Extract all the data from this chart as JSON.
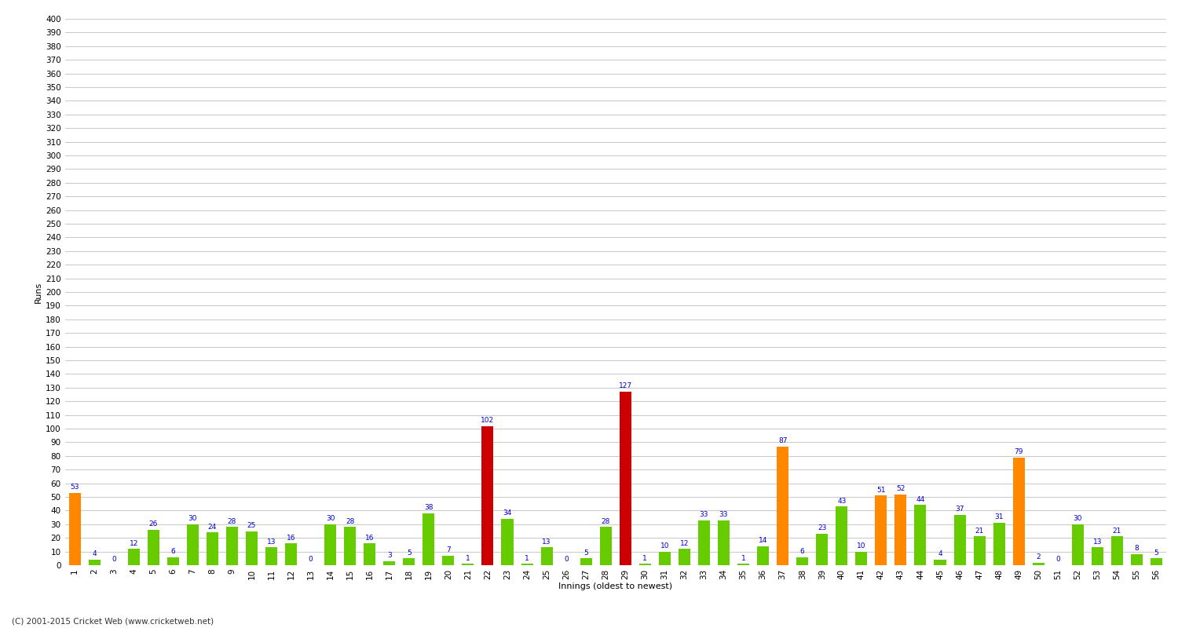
{
  "title": "",
  "xlabel": "Innings (oldest to newest)",
  "ylabel": "Runs",
  "footer": "(C) 2001-2015 Cricket Web (www.cricketweb.net)",
  "ylim": [
    0,
    400
  ],
  "ytick_step": 10,
  "innings": [
    {
      "n": 1,
      "runs": 53,
      "color": "orange"
    },
    {
      "n": 2,
      "runs": 4,
      "color": "green"
    },
    {
      "n": 3,
      "runs": 0,
      "color": "green"
    },
    {
      "n": 4,
      "runs": 12,
      "color": "green"
    },
    {
      "n": 5,
      "runs": 26,
      "color": "green"
    },
    {
      "n": 6,
      "runs": 6,
      "color": "green"
    },
    {
      "n": 7,
      "runs": 30,
      "color": "green"
    },
    {
      "n": 8,
      "runs": 24,
      "color": "green"
    },
    {
      "n": 9,
      "runs": 28,
      "color": "green"
    },
    {
      "n": 10,
      "runs": 25,
      "color": "green"
    },
    {
      "n": 11,
      "runs": 13,
      "color": "green"
    },
    {
      "n": 12,
      "runs": 16,
      "color": "green"
    },
    {
      "n": 13,
      "runs": 0,
      "color": "green"
    },
    {
      "n": 14,
      "runs": 30,
      "color": "green"
    },
    {
      "n": 15,
      "runs": 28,
      "color": "green"
    },
    {
      "n": 16,
      "runs": 16,
      "color": "green"
    },
    {
      "n": 17,
      "runs": 3,
      "color": "green"
    },
    {
      "n": 18,
      "runs": 5,
      "color": "green"
    },
    {
      "n": 19,
      "runs": 38,
      "color": "green"
    },
    {
      "n": 20,
      "runs": 7,
      "color": "green"
    },
    {
      "n": 21,
      "runs": 1,
      "color": "green"
    },
    {
      "n": 22,
      "runs": 102,
      "color": "red"
    },
    {
      "n": 23,
      "runs": 34,
      "color": "green"
    },
    {
      "n": 24,
      "runs": 1,
      "color": "green"
    },
    {
      "n": 25,
      "runs": 13,
      "color": "green"
    },
    {
      "n": 26,
      "runs": 0,
      "color": "green"
    },
    {
      "n": 27,
      "runs": 5,
      "color": "green"
    },
    {
      "n": 28,
      "runs": 28,
      "color": "green"
    },
    {
      "n": 29,
      "runs": 127,
      "color": "red"
    },
    {
      "n": 30,
      "runs": 1,
      "color": "green"
    },
    {
      "n": 31,
      "runs": 10,
      "color": "green"
    },
    {
      "n": 32,
      "runs": 12,
      "color": "green"
    },
    {
      "n": 33,
      "runs": 33,
      "color": "green"
    },
    {
      "n": 34,
      "runs": 33,
      "color": "green"
    },
    {
      "n": 35,
      "runs": 1,
      "color": "green"
    },
    {
      "n": 36,
      "runs": 14,
      "color": "green"
    },
    {
      "n": 37,
      "runs": 87,
      "color": "orange"
    },
    {
      "n": 38,
      "runs": 6,
      "color": "green"
    },
    {
      "n": 39,
      "runs": 23,
      "color": "green"
    },
    {
      "n": 40,
      "runs": 43,
      "color": "green"
    },
    {
      "n": 41,
      "runs": 10,
      "color": "green"
    },
    {
      "n": 42,
      "runs": 51,
      "color": "orange"
    },
    {
      "n": 43,
      "runs": 52,
      "color": "orange"
    },
    {
      "n": 44,
      "runs": 44,
      "color": "green"
    },
    {
      "n": 45,
      "runs": 4,
      "color": "green"
    },
    {
      "n": 46,
      "runs": 37,
      "color": "green"
    },
    {
      "n": 47,
      "runs": 21,
      "color": "green"
    },
    {
      "n": 48,
      "runs": 31,
      "color": "green"
    },
    {
      "n": 49,
      "runs": 79,
      "color": "orange"
    },
    {
      "n": 50,
      "runs": 2,
      "color": "green"
    },
    {
      "n": 51,
      "runs": 0,
      "color": "green"
    },
    {
      "n": 52,
      "runs": 30,
      "color": "green"
    },
    {
      "n": 53,
      "runs": 13,
      "color": "green"
    },
    {
      "n": 54,
      "runs": 21,
      "color": "green"
    },
    {
      "n": 55,
      "runs": 8,
      "color": "green"
    },
    {
      "n": 56,
      "runs": 5,
      "color": "green"
    }
  ],
  "color_green": "#66cc00",
  "color_orange": "#ff8800",
  "color_red": "#cc0000",
  "bg_color": "#ffffff",
  "grid_color": "#cccccc",
  "label_color": "#0000cc",
  "label_fontsize": 6.5,
  "tick_fontsize": 7.5,
  "ylabel_fontsize": 8,
  "xlabel_fontsize": 8,
  "footer_fontsize": 7.5
}
